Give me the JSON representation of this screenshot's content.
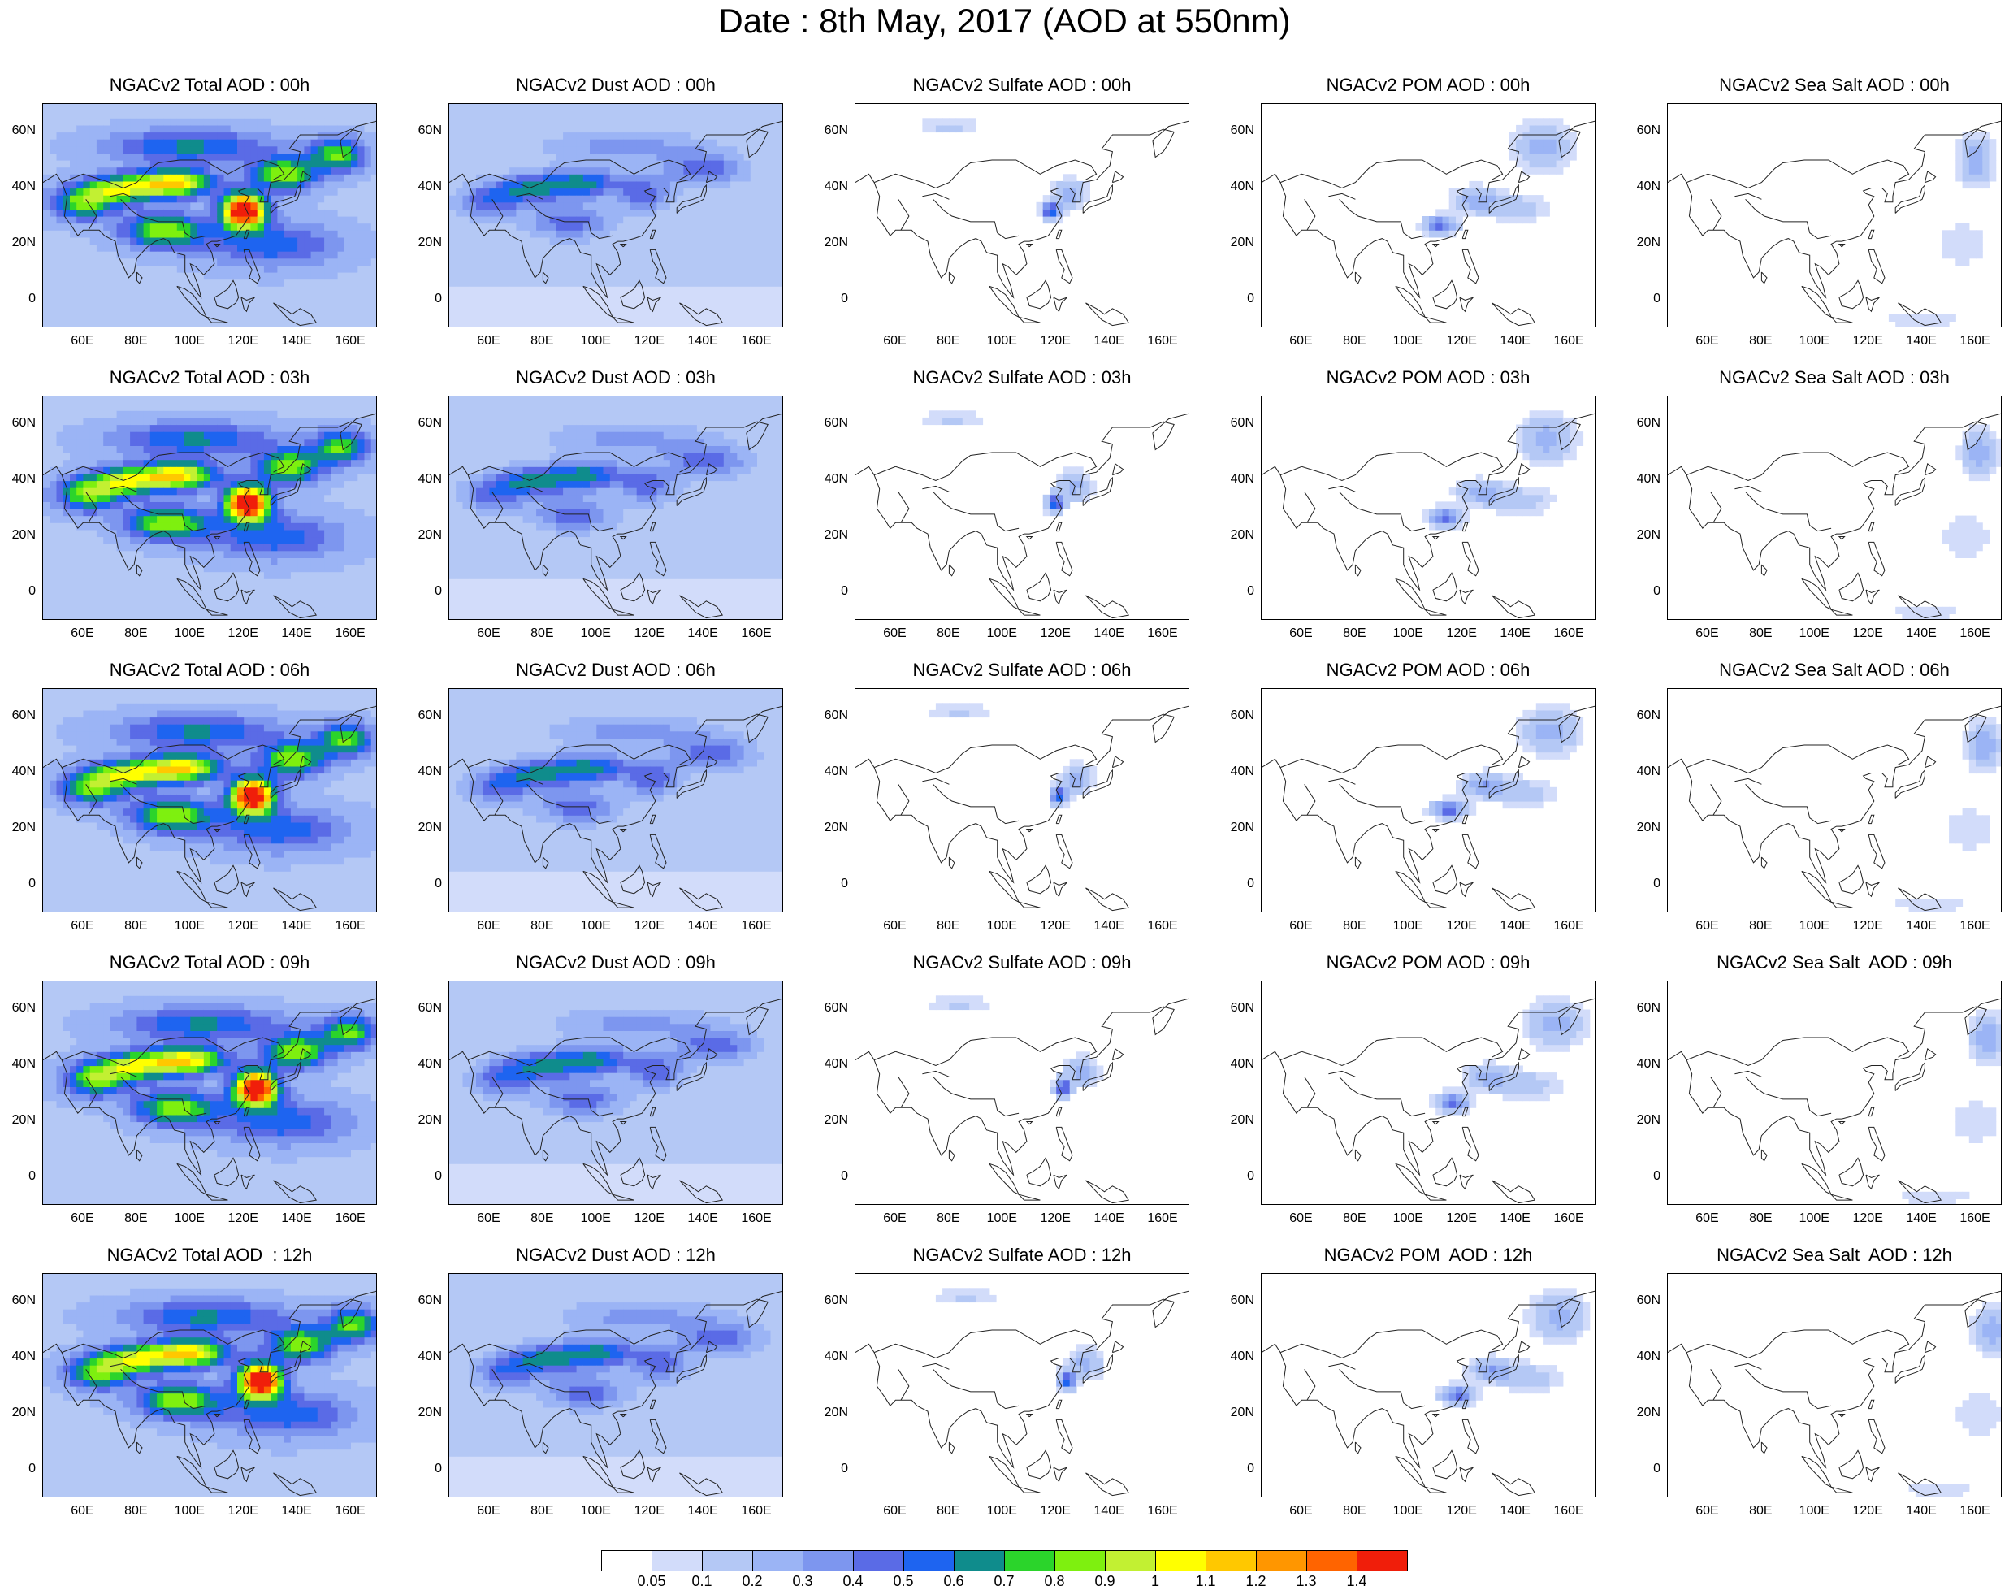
{
  "title": "Date : 8th May, 2017 (AOD at 550nm)",
  "x_ticks": [
    "60E",
    "80E",
    "100E",
    "120E",
    "140E",
    "160E"
  ],
  "y_ticks": [
    "60N",
    "40N",
    "20N",
    "0"
  ],
  "columns": [
    {
      "species": "total",
      "titles": [
        "NGACv2 Total AOD : 00h",
        "NGACv2 Total AOD : 03h",
        "NGACv2 Total AOD : 06h",
        "NGACv2 Total AOD : 09h",
        "NGACv2 Total AOD  : 12h"
      ]
    },
    {
      "species": "dust",
      "titles": [
        "NGACv2 Dust AOD : 00h",
        "NGACv2 Dust AOD : 03h",
        "NGACv2 Dust AOD : 06h",
        "NGACv2 Dust AOD : 09h",
        "NGACv2 Dust AOD : 12h"
      ]
    },
    {
      "species": "sulfate",
      "titles": [
        "NGACv2 Sulfate AOD : 00h",
        "NGACv2 Sulfate AOD : 03h",
        "NGACv2 Sulfate AOD : 06h",
        "NGACv2 Sulfate AOD : 09h",
        "NGACv2 Sulfate AOD : 12h"
      ]
    },
    {
      "species": "pom",
      "titles": [
        "NGACv2 POM AOD : 00h",
        "NGACv2 POM AOD : 03h",
        "NGACv2 POM AOD : 06h",
        "NGACv2 POM AOD : 09h",
        "NGACv2 POM  AOD : 12h"
      ]
    },
    {
      "species": "seasalt",
      "titles": [
        "NGACv2 Sea Salt AOD : 00h",
        "NGACv2 Sea Salt AOD : 03h",
        "NGACv2 Sea Salt AOD : 06h",
        "NGACv2 Sea Salt  AOD : 09h",
        "NGACv2 Sea Salt  AOD : 12h"
      ]
    }
  ],
  "colorbar": {
    "labels": [
      "0.05",
      "0.1",
      "0.2",
      "0.3",
      "0.4",
      "0.5",
      "0.6",
      "0.7",
      "0.8",
      "0.9",
      "1",
      "1.1",
      "1.2",
      "1.3",
      "1.4"
    ],
    "colors": [
      "#ffffff",
      "#d2dcfa",
      "#b4c8f5",
      "#9bb4f5",
      "#7d96ef",
      "#5a6be6",
      "#1e64f0",
      "#0f8c8c",
      "#2bd42b",
      "#7ef00f",
      "#c2f032",
      "#ffff00",
      "#ffc800",
      "#ff9600",
      "#ff6400",
      "#f01e0a"
    ]
  }
}
